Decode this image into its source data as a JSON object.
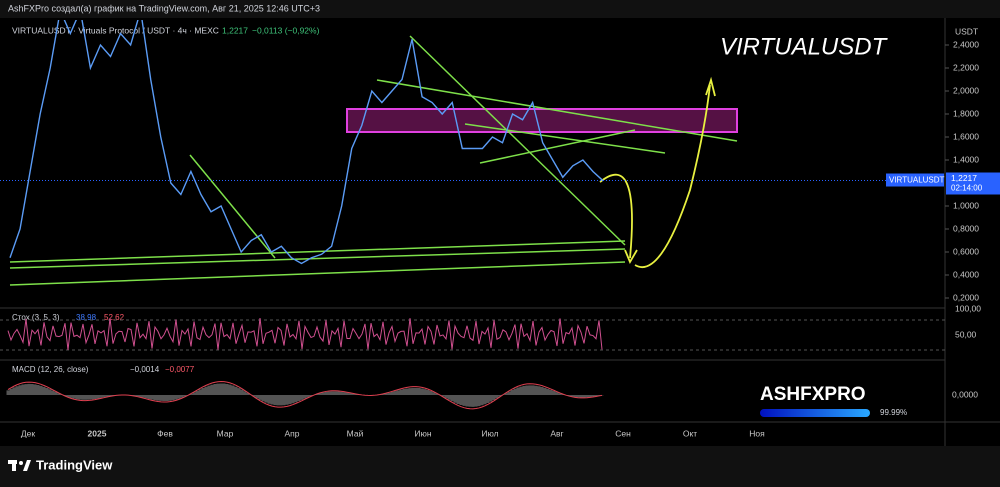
{
  "header": {
    "text": "AshFXPro создал(а) график на TradingView.com, Авг 21, 2025 12:46 UTC+3"
  },
  "symbol_bar": {
    "symbol": "VIRTUALUSDT · Virtuals Protocol / USDT · 4ч · MEXC",
    "price": "1,2217",
    "change": "−0,0113 (−0,92%)"
  },
  "watermark": "VIRTUALUSDT",
  "price_axis": {
    "unit": "USDT",
    "ticks": [
      {
        "value": 2.4,
        "label": "2,4000"
      },
      {
        "value": 2.2,
        "label": "2,2000"
      },
      {
        "value": 2.0,
        "label": "2,0000"
      },
      {
        "value": 1.8,
        "label": "1,8000"
      },
      {
        "value": 1.6,
        "label": "1,6000"
      },
      {
        "value": 1.4,
        "label": "1,4000"
      },
      {
        "value": 1.0,
        "label": "1,0000"
      },
      {
        "value": 0.8,
        "label": "0,8000"
      },
      {
        "value": 0.6,
        "label": "0,6000"
      },
      {
        "value": 0.4,
        "label": "0,4000"
      },
      {
        "value": 0.2,
        "label": "0,2000"
      }
    ]
  },
  "last_price": {
    "symbol": "VIRTUALUSDT",
    "value": 1.2217,
    "label": "1,2217",
    "countdown": "02:14:00"
  },
  "price_line": {
    "values": [
      0.55,
      0.8,
      1.3,
      1.8,
      2.2,
      2.7,
      2.5,
      2.7,
      2.2,
      2.4,
      2.3,
      2.5,
      2.4,
      2.7,
      2.1,
      1.6,
      1.2,
      1.1,
      1.3,
      1.1,
      0.95,
      1.0,
      0.8,
      0.6,
      0.7,
      0.75,
      0.6,
      0.65,
      0.55,
      0.5,
      0.55,
      0.58,
      0.65,
      1.0,
      1.5,
      1.7,
      2.0,
      1.9,
      2.0,
      2.1,
      2.45,
      1.95,
      1.9,
      1.8,
      1.9,
      1.5,
      1.5,
      1.5,
      1.6,
      1.55,
      1.8,
      1.75,
      1.9,
      1.55,
      1.4,
      1.25,
      1.35,
      1.4,
      1.3,
      1.22
    ]
  },
  "stoch": {
    "label": "Стох (3, 5, 3)",
    "k": "38,98",
    "d": "52,62",
    "ticks": [
      "100,00",
      "50,00"
    ]
  },
  "macd": {
    "label": "MACD (12, 26, close)",
    "macd": "−0,0014",
    "signal": "−0,0077",
    "tick": "0,0000"
  },
  "time_axis": [
    "Дек",
    "2025",
    "Фев",
    "Мар",
    "Апр",
    "Май",
    "Июн",
    "Июл",
    "Авг",
    "Сен",
    "Окт",
    "Ноя"
  ],
  "logo": {
    "name": "ASHFXPRO",
    "percent": "99.99%"
  },
  "footer": "TradingView"
}
